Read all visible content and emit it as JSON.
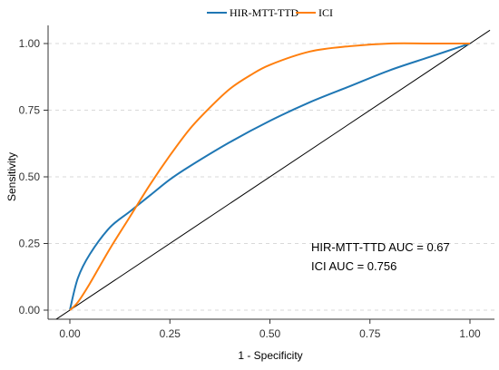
{
  "chart_data": {
    "type": "line",
    "xlabel": "1 - Specificity",
    "ylabel": "Sensitivity",
    "xlim": [
      0,
      1
    ],
    "ylim": [
      0,
      1
    ],
    "x_ticks": [
      "0.00",
      "0.25",
      "0.50",
      "0.75",
      "1.00"
    ],
    "y_ticks": [
      "0.00",
      "0.25",
      "0.50",
      "0.75",
      "1.00"
    ],
    "grid": "horizontal dashed",
    "legend_position": "top",
    "series": [
      {
        "name": "HIR-MTT-TTD",
        "color": "#1f77b4",
        "x": [
          0,
          0.02,
          0.05,
          0.1,
          0.15,
          0.2,
          0.25,
          0.3,
          0.4,
          0.5,
          0.6,
          0.7,
          0.8,
          0.9,
          1.0
        ],
        "y": [
          0,
          0.12,
          0.21,
          0.31,
          0.37,
          0.43,
          0.49,
          0.54,
          0.63,
          0.71,
          0.78,
          0.84,
          0.9,
          0.95,
          1.0
        ]
      },
      {
        "name": "ICI",
        "color": "#ff7f0e",
        "x": [
          0,
          0.02,
          0.05,
          0.1,
          0.15,
          0.2,
          0.25,
          0.3,
          0.35,
          0.4,
          0.45,
          0.5,
          0.6,
          0.7,
          0.8,
          0.9,
          1.0
        ],
        "y": [
          0,
          0.03,
          0.1,
          0.23,
          0.35,
          0.47,
          0.58,
          0.68,
          0.76,
          0.83,
          0.88,
          0.92,
          0.97,
          0.99,
          1.0,
          1.0,
          1.0
        ]
      }
    ],
    "reference_line": {
      "x": [
        -0.05,
        1.05
      ],
      "y": [
        -0.05,
        1.05
      ]
    },
    "annotations": [
      "HIR-MTT-TTD AUC = 0.67",
      "ICI AUC = 0.756"
    ]
  }
}
